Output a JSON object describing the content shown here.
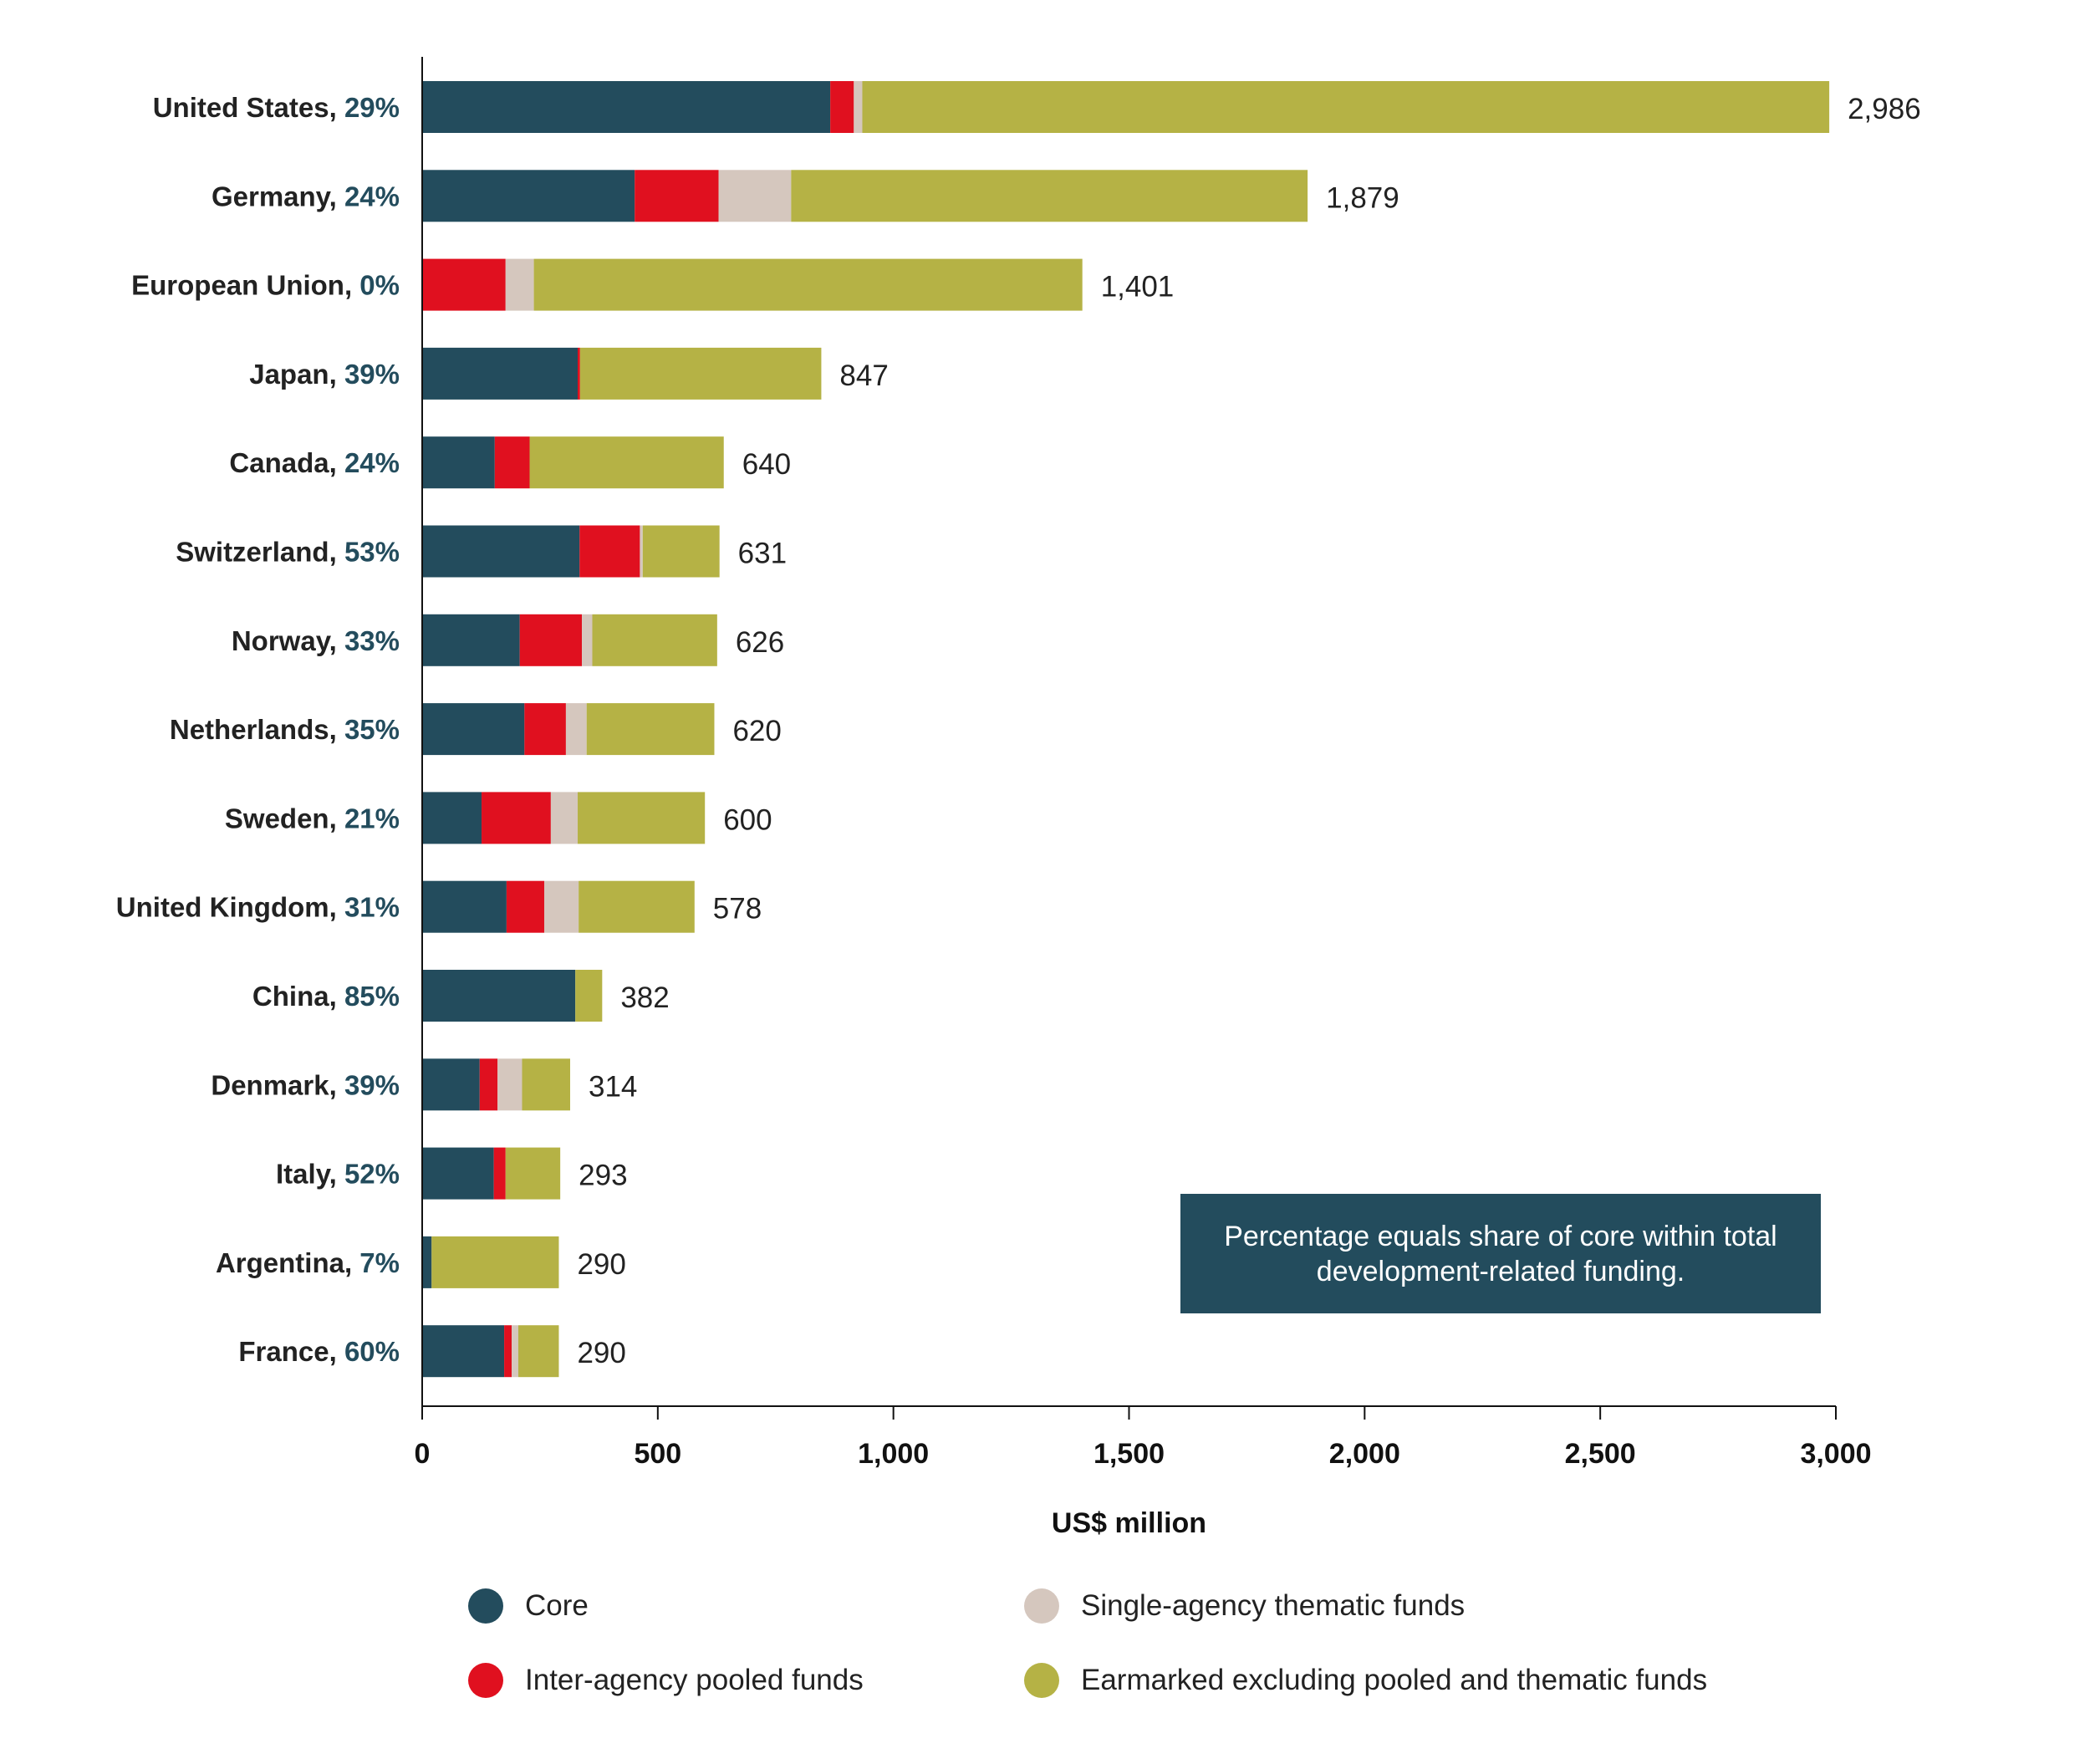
{
  "chart_data": {
    "type": "bar",
    "orientation": "horizontal",
    "stacked": true,
    "categories": [
      "United States",
      "Germany",
      "European Union",
      "Japan",
      "Canada",
      "Switzerland",
      "Norway",
      "Netherlands",
      "Sweden",
      "United Kingdom",
      "China",
      "Denmark",
      "Italy",
      "Argentina",
      "France"
    ],
    "core_share_labels": [
      "29%",
      "24%",
      "0%",
      "39%",
      "24%",
      "53%",
      "33%",
      "35%",
      "21%",
      "31%",
      "85%",
      "39%",
      "52%",
      "7%",
      "60%"
    ],
    "totals": [
      2986,
      1879,
      1401,
      847,
      640,
      631,
      626,
      620,
      600,
      578,
      382,
      314,
      293,
      290,
      290
    ],
    "total_labels": [
      "2,986",
      "1,879",
      "1,401",
      "847",
      "640",
      "631",
      "626",
      "620",
      "600",
      "578",
      "382",
      "314",
      "293",
      "290",
      "290"
    ],
    "series": [
      {
        "name": "Core",
        "color": "#234c5d",
        "values": [
          866,
          451,
          0,
          330,
          154,
          334,
          207,
          217,
          126,
          179,
          325,
          122,
          152,
          20,
          174
        ]
      },
      {
        "name": "Inter-agency pooled funds",
        "color": "#e0101f",
        "values": [
          50,
          178,
          177,
          5,
          74,
          128,
          132,
          88,
          147,
          80,
          0,
          38,
          25,
          0,
          16
        ]
      },
      {
        "name": "Single-agency thematic funds",
        "color": "#d5c7be",
        "values": [
          18,
          154,
          60,
          0,
          0,
          6,
          22,
          44,
          57,
          73,
          0,
          52,
          0,
          0,
          14
        ]
      },
      {
        "name": "Earmarked excluding pooled and thematic funds",
        "color": "#b5b245",
        "values": [
          2052,
          1096,
          1164,
          512,
          412,
          163,
          265,
          271,
          270,
          246,
          57,
          102,
          116,
          270,
          86
        ]
      }
    ],
    "xlabel": "US$ million",
    "xlim": [
      0,
      3000
    ],
    "xticks": [
      0,
      500,
      1000,
      1500,
      2000,
      2500,
      3000
    ],
    "xtick_labels": [
      "0",
      "500",
      "1,000",
      "1,500",
      "2,000",
      "2,500",
      "3,000"
    ],
    "grid": false,
    "legend_position": "bottom",
    "annotation": "Percentage equals share of core within total development-related funding."
  },
  "legend": {
    "items": [
      {
        "label": "Core",
        "color": "#234c5d"
      },
      {
        "label": "Single-agency thematic funds",
        "color": "#d5c7be"
      },
      {
        "label": "Inter-agency pooled funds",
        "color": "#e0101f"
      },
      {
        "label": "Earmarked excluding pooled and thematic funds",
        "color": "#b5b245"
      }
    ]
  },
  "note": {
    "text": "Percentage equals share of core within total development-related funding."
  }
}
